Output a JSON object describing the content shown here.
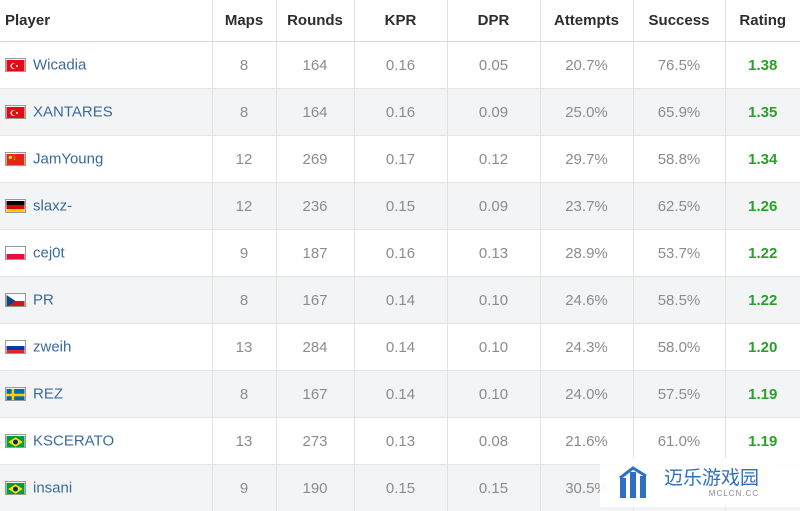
{
  "table": {
    "headers": [
      "Player",
      "Maps",
      "Rounds",
      "KPR",
      "DPR",
      "Attempts",
      "Success",
      "Rating"
    ],
    "rows": [
      {
        "flag": "tr",
        "player": "Wicadia",
        "maps": "8",
        "rounds": "164",
        "kpr": "0.16",
        "dpr": "0.05",
        "attempts": "20.7%",
        "success": "76.5%",
        "rating": "1.38"
      },
      {
        "flag": "tr",
        "player": "XANTARES",
        "maps": "8",
        "rounds": "164",
        "kpr": "0.16",
        "dpr": "0.09",
        "attempts": "25.0%",
        "success": "65.9%",
        "rating": "1.35"
      },
      {
        "flag": "cn",
        "player": "JamYoung",
        "maps": "12",
        "rounds": "269",
        "kpr": "0.17",
        "dpr": "0.12",
        "attempts": "29.7%",
        "success": "58.8%",
        "rating": "1.34"
      },
      {
        "flag": "de",
        "player": "slaxz-",
        "maps": "12",
        "rounds": "236",
        "kpr": "0.15",
        "dpr": "0.09",
        "attempts": "23.7%",
        "success": "62.5%",
        "rating": "1.26"
      },
      {
        "flag": "pl",
        "player": "cej0t",
        "maps": "9",
        "rounds": "187",
        "kpr": "0.16",
        "dpr": "0.13",
        "attempts": "28.9%",
        "success": "53.7%",
        "rating": "1.22"
      },
      {
        "flag": "cz",
        "player": "PR",
        "maps": "8",
        "rounds": "167",
        "kpr": "0.14",
        "dpr": "0.10",
        "attempts": "24.6%",
        "success": "58.5%",
        "rating": "1.22"
      },
      {
        "flag": "ru",
        "player": "zweih",
        "maps": "13",
        "rounds": "284",
        "kpr": "0.14",
        "dpr": "0.10",
        "attempts": "24.3%",
        "success": "58.0%",
        "rating": "1.20"
      },
      {
        "flag": "se",
        "player": "REZ",
        "maps": "8",
        "rounds": "167",
        "kpr": "0.14",
        "dpr": "0.10",
        "attempts": "24.0%",
        "success": "57.5%",
        "rating": "1.19"
      },
      {
        "flag": "br",
        "player": "KSCERATO",
        "maps": "13",
        "rounds": "273",
        "kpr": "0.13",
        "dpr": "0.08",
        "attempts": "21.6%",
        "success": "61.0%",
        "rating": "1.19"
      },
      {
        "flag": "br",
        "player": "insani",
        "maps": "9",
        "rounds": "190",
        "kpr": "0.15",
        "dpr": "0.15",
        "attempts": "30.5%",
        "success": "",
        "rating": ""
      }
    ]
  },
  "watermark": {
    "title": "迈乐游戏园",
    "subtitle": "MCLCN.CC"
  },
  "colors": {
    "player_link": "#3a6a9e",
    "rating": "#2ba02b",
    "stripe": "#f3f4f5"
  }
}
